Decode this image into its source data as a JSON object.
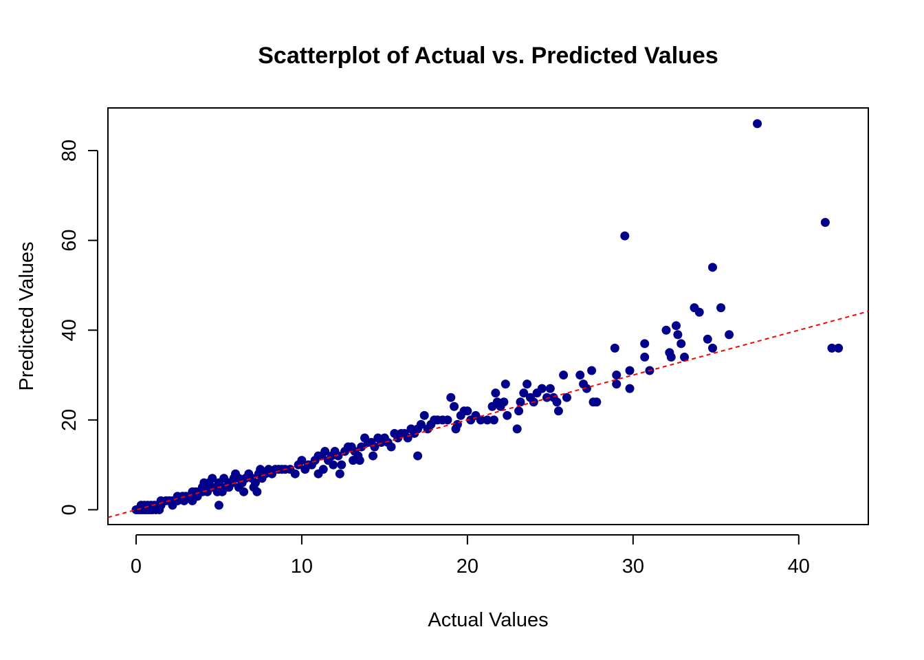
{
  "chart_data": {
    "type": "scatter",
    "title": "Scatterplot of Actual vs. Predicted Values",
    "xlabel": "Actual Values",
    "ylabel": "Predicted Values",
    "xlim": [
      -1.7,
      44.2
    ],
    "ylim": [
      -3.3,
      89.5
    ],
    "x_ticks": [
      0,
      10,
      20,
      30,
      40
    ],
    "y_ticks": [
      0,
      20,
      40,
      60,
      80
    ],
    "grid": false,
    "point_color": "#00008B",
    "line_color": "#FF0000",
    "reference_line": {
      "slope": 1,
      "intercept": 0,
      "style": "dashed"
    },
    "points": [
      [
        0.0,
        0
      ],
      [
        0.1,
        0
      ],
      [
        0.2,
        0
      ],
      [
        0.3,
        0
      ],
      [
        0.4,
        0
      ],
      [
        0.5,
        0
      ],
      [
        0.6,
        0
      ],
      [
        0.7,
        0
      ],
      [
        0.8,
        0
      ],
      [
        0.9,
        0
      ],
      [
        1.0,
        0
      ],
      [
        1.2,
        0
      ],
      [
        1.4,
        0
      ],
      [
        0.3,
        1
      ],
      [
        0.5,
        1
      ],
      [
        0.7,
        1
      ],
      [
        0.9,
        1
      ],
      [
        1.1,
        1
      ],
      [
        1.3,
        1
      ],
      [
        1.5,
        1
      ],
      [
        1.5,
        2
      ],
      [
        1.8,
        2
      ],
      [
        2.0,
        2
      ],
      [
        2.2,
        2
      ],
      [
        2.5,
        2
      ],
      [
        2.2,
        1
      ],
      [
        2.5,
        3
      ],
      [
        2.8,
        3
      ],
      [
        3.0,
        3
      ],
      [
        3.2,
        3
      ],
      [
        2.9,
        2
      ],
      [
        3.4,
        2
      ],
      [
        3.4,
        4
      ],
      [
        3.6,
        4
      ],
      [
        3.8,
        4
      ],
      [
        4.0,
        4
      ],
      [
        3.7,
        3
      ],
      [
        4.0,
        5
      ],
      [
        4.2,
        5
      ],
      [
        4.4,
        5
      ],
      [
        4.6,
        5
      ],
      [
        4.8,
        5
      ],
      [
        4.3,
        4
      ],
      [
        4.1,
        6
      ],
      [
        4.4,
        6
      ],
      [
        4.6,
        7
      ],
      [
        5.0,
        6
      ],
      [
        4.9,
        4
      ],
      [
        5.0,
        1
      ],
      [
        5.2,
        4
      ],
      [
        5.4,
        5
      ],
      [
        5.6,
        6
      ],
      [
        5.8,
        6
      ],
      [
        5.3,
        7
      ],
      [
        5.6,
        5
      ],
      [
        5.9,
        7
      ],
      [
        6.0,
        8
      ],
      [
        6.2,
        7
      ],
      [
        6.4,
        6
      ],
      [
        6.6,
        7
      ],
      [
        6.2,
        5
      ],
      [
        6.5,
        4
      ],
      [
        6.8,
        8
      ],
      [
        7.0,
        7
      ],
      [
        7.2,
        6
      ],
      [
        7.4,
        8
      ],
      [
        7.1,
        5
      ],
      [
        7.3,
        4
      ],
      [
        7.5,
        9
      ],
      [
        7.6,
        7
      ],
      [
        7.8,
        8
      ],
      [
        8.0,
        9
      ],
      [
        8.2,
        8
      ],
      [
        8.4,
        9
      ],
      [
        8.6,
        9
      ],
      [
        8.8,
        9
      ],
      [
        9.0,
        9
      ],
      [
        9.3,
        9
      ],
      [
        9.6,
        8
      ],
      [
        9.8,
        10
      ],
      [
        10.0,
        11
      ],
      [
        10.2,
        9
      ],
      [
        10.4,
        10
      ],
      [
        10.6,
        10
      ],
      [
        10.8,
        11
      ],
      [
        11.0,
        12
      ],
      [
        11.2,
        12
      ],
      [
        11.4,
        13
      ],
      [
        11.6,
        11
      ],
      [
        11.0,
        8
      ],
      [
        11.3,
        9
      ],
      [
        11.8,
        12
      ],
      [
        12.0,
        13
      ],
      [
        12.2,
        12
      ],
      [
        12.4,
        10
      ],
      [
        12.6,
        13
      ],
      [
        12.8,
        14
      ],
      [
        12.3,
        8
      ],
      [
        11.9,
        10
      ],
      [
        13.0,
        14
      ],
      [
        13.2,
        13
      ],
      [
        13.4,
        12
      ],
      [
        13.6,
        14
      ],
      [
        13.8,
        16
      ],
      [
        14.0,
        15
      ],
      [
        13.5,
        11
      ],
      [
        13.1,
        11
      ],
      [
        14.2,
        15
      ],
      [
        14.4,
        14
      ],
      [
        14.6,
        16
      ],
      [
        14.8,
        15
      ],
      [
        15.0,
        16
      ],
      [
        15.2,
        15
      ],
      [
        14.3,
        12
      ],
      [
        15.4,
        14
      ],
      [
        15.6,
        17
      ],
      [
        15.8,
        16
      ],
      [
        16.0,
        17
      ],
      [
        16.2,
        17
      ],
      [
        16.4,
        16
      ],
      [
        16.6,
        18
      ],
      [
        16.8,
        17
      ],
      [
        17.0,
        18
      ],
      [
        17.0,
        12
      ],
      [
        17.2,
        19
      ],
      [
        17.4,
        21
      ],
      [
        17.6,
        18
      ],
      [
        17.8,
        19
      ],
      [
        18.0,
        20
      ],
      [
        18.2,
        20
      ],
      [
        18.5,
        20
      ],
      [
        18.8,
        20
      ],
      [
        19.0,
        25
      ],
      [
        19.2,
        23
      ],
      [
        19.4,
        19
      ],
      [
        19.6,
        21
      ],
      [
        19.8,
        22
      ],
      [
        20.0,
        22
      ],
      [
        19.3,
        18
      ],
      [
        20.2,
        20
      ],
      [
        20.5,
        21
      ],
      [
        20.8,
        20
      ],
      [
        21.2,
        20
      ],
      [
        21.5,
        23
      ],
      [
        21.7,
        26
      ],
      [
        21.8,
        24
      ],
      [
        22.0,
        23
      ],
      [
        22.2,
        24
      ],
      [
        22.3,
        28
      ],
      [
        21.6,
        20
      ],
      [
        22.4,
        21
      ],
      [
        23.0,
        18
      ],
      [
        23.1,
        22
      ],
      [
        23.2,
        24
      ],
      [
        23.4,
        26
      ],
      [
        23.6,
        28
      ],
      [
        23.8,
        25
      ],
      [
        24.0,
        24
      ],
      [
        24.2,
        26
      ],
      [
        24.5,
        27
      ],
      [
        24.8,
        25
      ],
      [
        25.0,
        27
      ],
      [
        25.4,
        24
      ],
      [
        25.2,
        25
      ],
      [
        25.5,
        22
      ],
      [
        25.8,
        30
      ],
      [
        26.0,
        25
      ],
      [
        26.8,
        30
      ],
      [
        27.0,
        28
      ],
      [
        27.2,
        27
      ],
      [
        27.5,
        31
      ],
      [
        27.6,
        24
      ],
      [
        27.8,
        24
      ],
      [
        28.9,
        36
      ],
      [
        29.0,
        30
      ],
      [
        29.0,
        28
      ],
      [
        29.5,
        61
      ],
      [
        29.8,
        31
      ],
      [
        29.8,
        27
      ],
      [
        30.7,
        37
      ],
      [
        30.7,
        34
      ],
      [
        31.0,
        31
      ],
      [
        32.0,
        40
      ],
      [
        32.2,
        35
      ],
      [
        32.3,
        34
      ],
      [
        32.6,
        41
      ],
      [
        32.7,
        39
      ],
      [
        32.9,
        37
      ],
      [
        33.1,
        34
      ],
      [
        33.7,
        45
      ],
      [
        34.0,
        44
      ],
      [
        34.5,
        38
      ],
      [
        34.8,
        36
      ],
      [
        34.8,
        54
      ],
      [
        35.3,
        45
      ],
      [
        35.8,
        39
      ],
      [
        37.5,
        86
      ],
      [
        41.6,
        64
      ],
      [
        42.0,
        36
      ],
      [
        42.4,
        36
      ]
    ]
  }
}
